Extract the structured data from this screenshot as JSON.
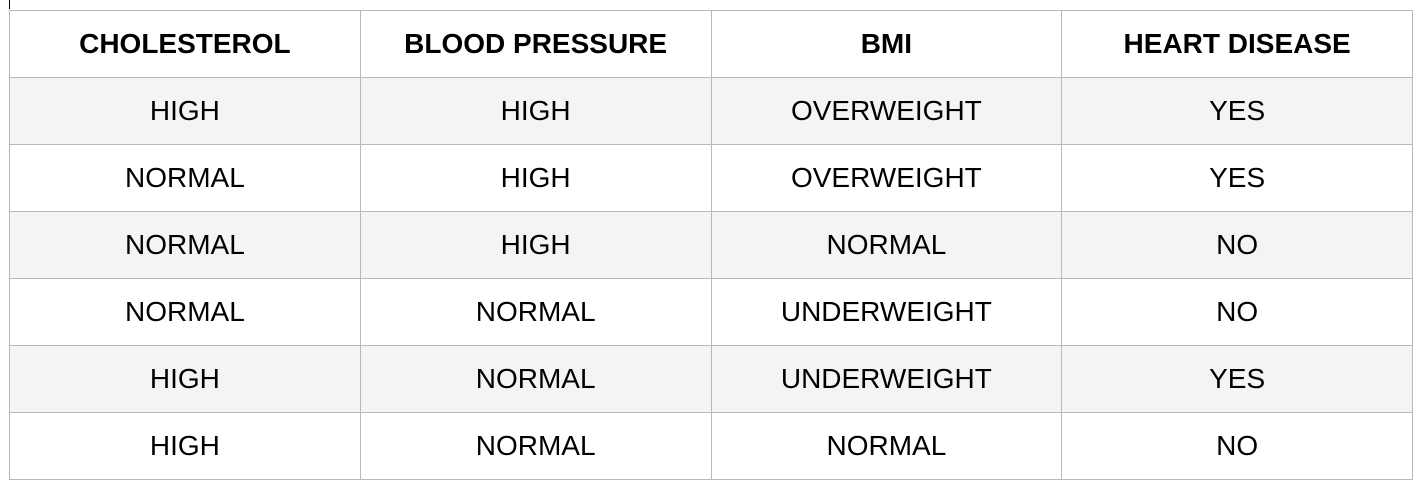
{
  "table": {
    "headers": [
      "CHOLESTEROL",
      "BLOOD PRESSURE",
      "BMI",
      "HEART DISEASE"
    ],
    "rows": [
      [
        "HIGH",
        "HIGH",
        "OVERWEIGHT",
        "YES"
      ],
      [
        "NORMAL",
        "HIGH",
        "OVERWEIGHT",
        "YES"
      ],
      [
        "NORMAL",
        "HIGH",
        "NORMAL",
        "NO"
      ],
      [
        "NORMAL",
        "NORMAL",
        "UNDERWEIGHT",
        "NO"
      ],
      [
        "HIGH",
        "NORMAL",
        "UNDERWEIGHT",
        "YES"
      ],
      [
        "HIGH",
        "NORMAL",
        "NORMAL",
        "NO"
      ]
    ]
  },
  "colors": {
    "border": "#b8b8b8",
    "stripe": "#f4f4f4",
    "text": "#000000"
  }
}
